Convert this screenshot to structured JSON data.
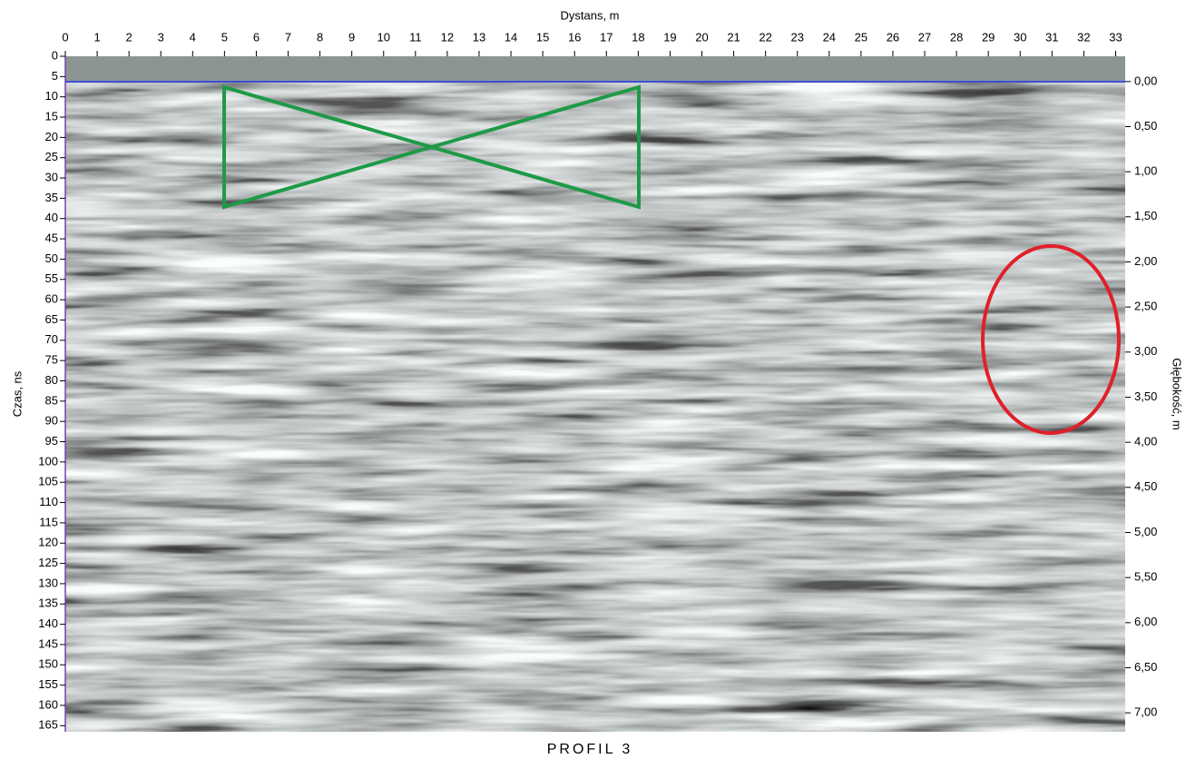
{
  "chart_data": {
    "type": "radargram",
    "xlabel": "Dystans, m",
    "ylabel": "Czas, ns",
    "y2label": "Głębokość, m",
    "caption": "PROFIL 3",
    "xlim": [
      0,
      33.3
    ],
    "xticks": [
      0,
      1,
      2,
      3,
      4,
      5,
      6,
      7,
      8,
      9,
      10,
      11,
      12,
      13,
      14,
      15,
      16,
      17,
      18,
      19,
      20,
      21,
      22,
      23,
      24,
      25,
      26,
      27,
      28,
      29,
      30,
      31,
      32,
      33
    ],
    "ylim": [
      0,
      166.5
    ],
    "yticks": [
      0,
      5,
      10,
      15,
      20,
      25,
      30,
      35,
      40,
      45,
      50,
      55,
      60,
      65,
      70,
      75,
      80,
      85,
      90,
      95,
      100,
      105,
      110,
      115,
      120,
      125,
      130,
      135,
      140,
      145,
      150,
      155,
      160,
      165
    ],
    "y2lim": [
      -0.28,
      7.21
    ],
    "y2ticks": [
      {
        "value": 0,
        "label": "0,00"
      },
      {
        "value": 0.5,
        "label": "0,50"
      },
      {
        "value": 1,
        "label": "1,00"
      },
      {
        "value": 1.5,
        "label": "1,50"
      },
      {
        "value": 2,
        "label": "2,00"
      },
      {
        "value": 2.5,
        "label": "2,50"
      },
      {
        "value": 3,
        "label": "3,00"
      },
      {
        "value": 3.5,
        "label": "3,50"
      },
      {
        "value": 4,
        "label": "4,00"
      },
      {
        "value": 4.5,
        "label": "4,50"
      },
      {
        "value": 5,
        "label": "5,00"
      },
      {
        "value": 5.5,
        "label": "5,50"
      },
      {
        "value": 6,
        "label": "6,00"
      },
      {
        "value": 6.5,
        "label": "6,50"
      },
      {
        "value": 7,
        "label": "7,00"
      }
    ]
  }
}
